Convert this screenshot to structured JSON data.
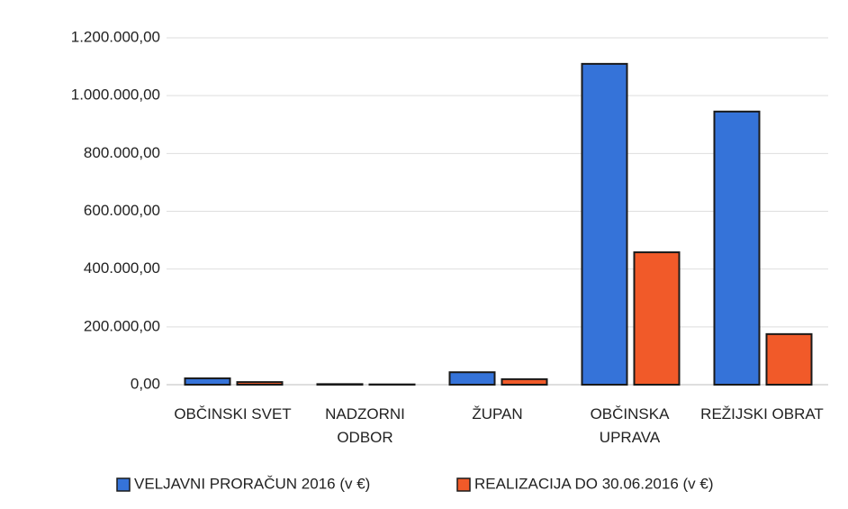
{
  "chart_data": {
    "type": "bar",
    "categories": [
      "OBČINSKI SVET",
      "NADZORNI\nODBOR",
      "ŽUPAN",
      "OBČINSKA\nUPRAVA",
      "REŽIJSKI OBRAT"
    ],
    "series": [
      {
        "name": "VELJAVNI PRORAČUN 2016 (v €)",
        "color": "#3573d9",
        "values": [
          22000,
          2000,
          43000,
          1110000,
          945000
        ]
      },
      {
        "name": "REALIZACIJA DO 30.06.2016 (v €)",
        "color": "#f15a29",
        "values": [
          9000,
          1000,
          19000,
          458000,
          175000
        ]
      }
    ],
    "ylim": [
      0,
      1200000
    ],
    "yticks": [
      {
        "value": 0,
        "label": "0,00"
      },
      {
        "value": 200000,
        "label": "200.000,00"
      },
      {
        "value": 400000,
        "label": "400.000,00"
      },
      {
        "value": 600000,
        "label": "600.000,00"
      },
      {
        "value": 800000,
        "label": "800.000,00"
      },
      {
        "value": 1000000,
        "label": "1.000.000,00"
      },
      {
        "value": 1200000,
        "label": "1.200.000,00"
      }
    ],
    "grid": true,
    "legend": "bottom"
  }
}
